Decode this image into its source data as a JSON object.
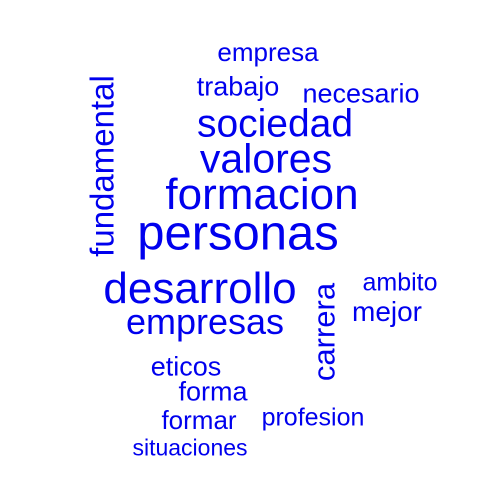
{
  "color": "#0000ee",
  "words": [
    {
      "text": "empresa"
    },
    {
      "text": "trabajo"
    },
    {
      "text": "necesario"
    },
    {
      "text": "sociedad"
    },
    {
      "text": "valores"
    },
    {
      "text": "formacion"
    },
    {
      "text": "personas"
    },
    {
      "text": "fundamental"
    },
    {
      "text": "desarrollo"
    },
    {
      "text": "empresas"
    },
    {
      "text": "ambito"
    },
    {
      "text": "mejor"
    },
    {
      "text": "carrera"
    },
    {
      "text": "eticos"
    },
    {
      "text": "forma"
    },
    {
      "text": "formar"
    },
    {
      "text": "profesion"
    },
    {
      "text": "situaciones"
    }
  ]
}
